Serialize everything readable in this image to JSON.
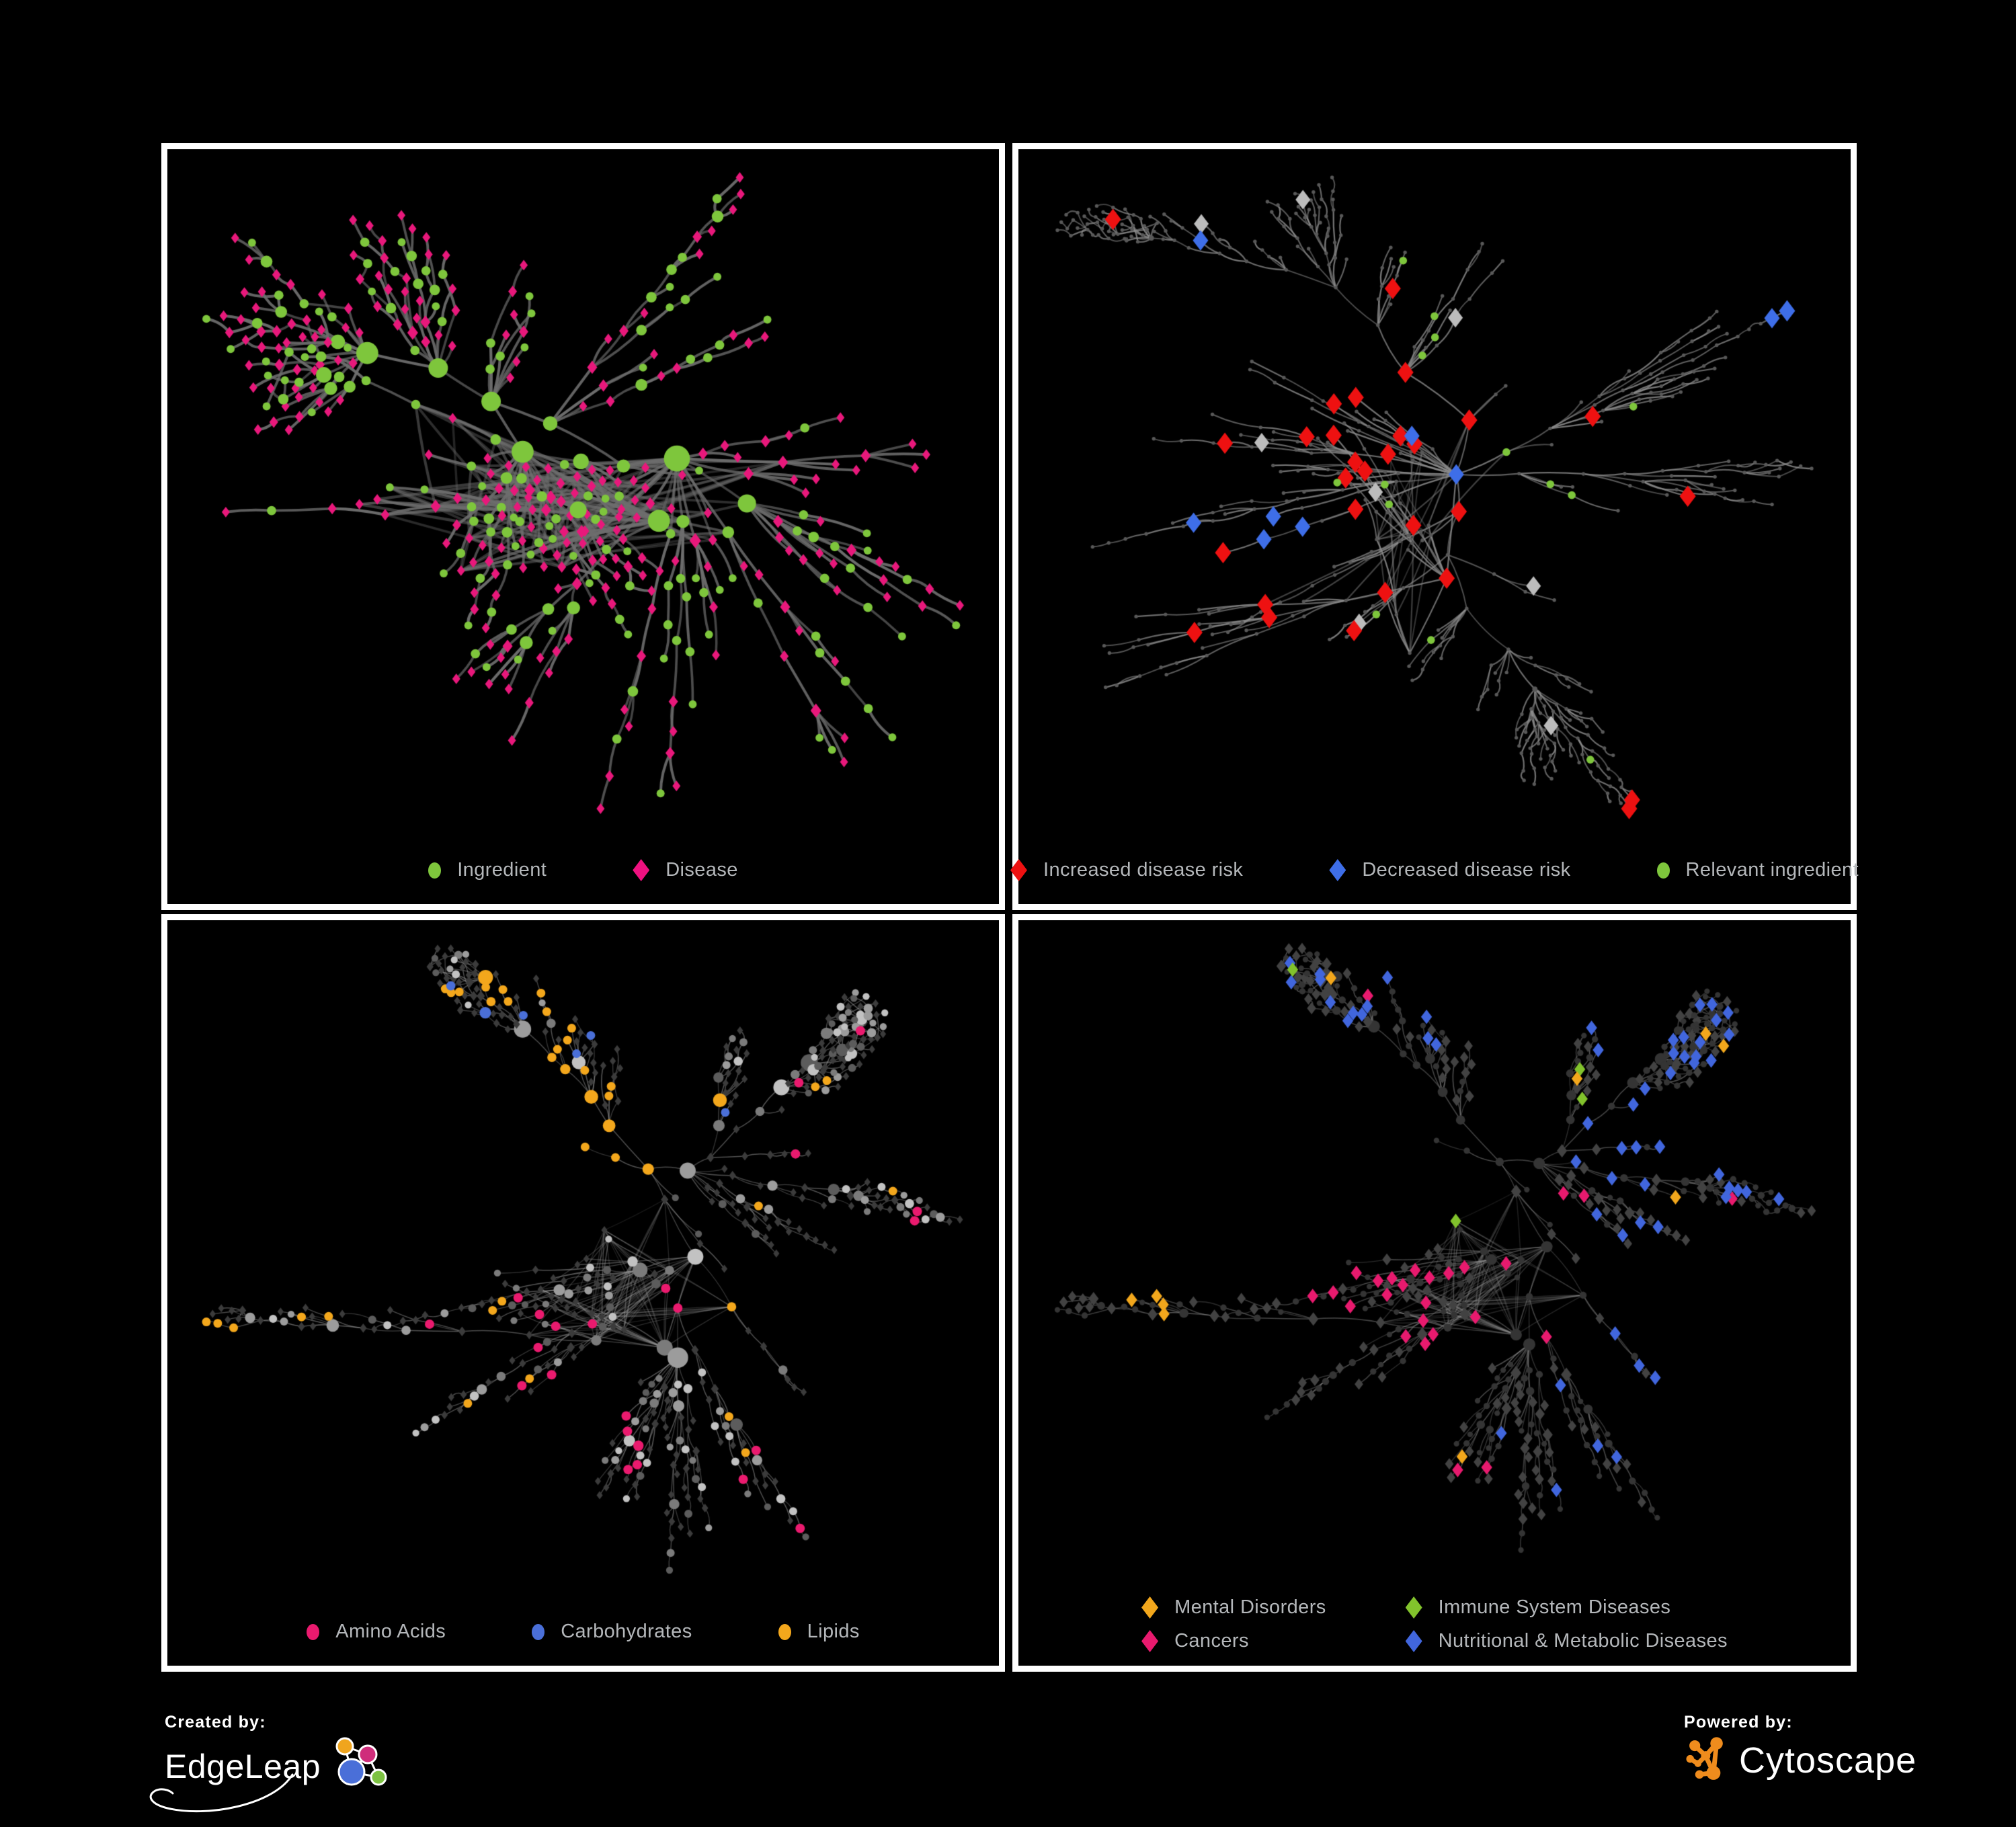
{
  "page": {
    "background": "#000000",
    "panel_border": "#ffffff",
    "legend_text_color": "#b4b7ba"
  },
  "branding": {
    "created_by": "Created by:",
    "edgeleap": "EdgeLeap",
    "powered_by": "Powered by:",
    "cytoscape": "Cytoscape",
    "edgeleap_mark_colors": {
      "orange": "#f0a51e",
      "pink": "#cf2d7b",
      "blue": "#4a6fd8",
      "green": "#7dc242",
      "line": "#ffffff"
    },
    "cytoscape_mark_color": "#ef8c1d"
  },
  "panels": [
    {
      "id": "ingredient-disease-network",
      "legend_columns": 1,
      "legend": [
        {
          "shape": "circle",
          "color": "#7ec63c",
          "label": "Ingredient"
        },
        {
          "shape": "diamond",
          "color": "#ef1180",
          "label": "Disease"
        }
      ],
      "network": {
        "type": "network",
        "seed": 11,
        "style_seed": 55,
        "style": "duotone",
        "nodes": 430,
        "chain": 0.26,
        "pref": 1.15,
        "extra_edges": 150,
        "len": 86,
        "decay": 0.87,
        "min_dist": 18,
        "colors": {
          "circle": "#7ec63c",
          "diamond": "#e8187b"
        },
        "edge": {
          "color": "#6e6e6e",
          "width": 3.1,
          "alpha": 0.8
        }
      }
    },
    {
      "id": "disease-risk-network",
      "legend_columns": 1,
      "legend": [
        {
          "shape": "diamond",
          "color": "#ee1111",
          "label": "Increased disease risk"
        },
        {
          "shape": "diamond",
          "color": "#3e6ee8",
          "label": "Decreased disease risk"
        },
        {
          "shape": "circle",
          "color": "#7ec63c",
          "label": "Relevant ingredient"
        }
      ],
      "network": {
        "type": "network",
        "seed": 19,
        "style_seed": 77,
        "style": "risk",
        "nodes": 520,
        "chain": 0.34,
        "pref": 1.1,
        "extra_edges": 35,
        "len": 82,
        "decay": 0.88,
        "min_dist": 13,
        "colors": {
          "dot": "#585858",
          "increased": "#ee1111",
          "decreased": "#3e6ee8",
          "neutral": "#bcbcbc",
          "ingredient": "#7ec63c"
        },
        "edge": {
          "color": "#8c8c8c",
          "width": 1.7,
          "alpha": 0.7
        }
      }
    },
    {
      "id": "nutrient-classes-network",
      "legend_columns": 1,
      "legend": [
        {
          "shape": "circle",
          "color": "#ea1a6e",
          "label": "Amino Acids"
        },
        {
          "shape": "circle",
          "color": "#4a6fd8",
          "label": "Carbohydrates"
        },
        {
          "shape": "circle",
          "color": "#f3a71c",
          "label": "Lipids"
        }
      ],
      "network": {
        "type": "network",
        "seed": 33,
        "style_seed": 101,
        "style": "nutrients",
        "nodes": 530,
        "chain": 0.3,
        "pref": 1.12,
        "extra_edges": 140,
        "len": 84,
        "decay": 0.87,
        "min_dist": 14,
        "colors": {
          "diamond": "#3b3b3b",
          "grays": [
            "#c2c2c2",
            "#9c9c9c",
            "#7b7b7b",
            "#5c5c5c"
          ],
          "amino": "#ea1a6e",
          "carbohydrate": "#4a6fd8",
          "lipid": "#f3a71c"
        },
        "edge": {
          "color": "#9e9e9e",
          "width": 1.15,
          "alpha": 0.45
        }
      }
    },
    {
      "id": "disease-classes-network",
      "legend_columns": 2,
      "legend": [
        {
          "shape": "diamond",
          "color": "#f2a71c",
          "label": "Mental Disorders"
        },
        {
          "shape": "diamond",
          "color": "#82c32c",
          "label": "Immune System Diseases"
        },
        {
          "shape": "diamond",
          "color": "#e81a6e",
          "label": "Cancers"
        },
        {
          "shape": "diamond",
          "color": "#4166dd",
          "label": "Nutritional & Metabolic Diseases"
        }
      ],
      "network": {
        "type": "network",
        "seed": 33,
        "style_seed": 202,
        "style": "diseases",
        "nodes": 530,
        "chain": 0.3,
        "pref": 1.12,
        "extra_edges": 140,
        "len": 84,
        "decay": 0.87,
        "min_dist": 14,
        "colors": {
          "circle": "#343434",
          "diamond": "#424242",
          "mental": "#f2a71c",
          "immune": "#82c32c",
          "cancer": "#e81a6e",
          "metabolic": "#4166dd"
        },
        "edge": {
          "color": "#8f8f8f",
          "width": 1.25,
          "alpha": 0.42
        }
      }
    }
  ]
}
